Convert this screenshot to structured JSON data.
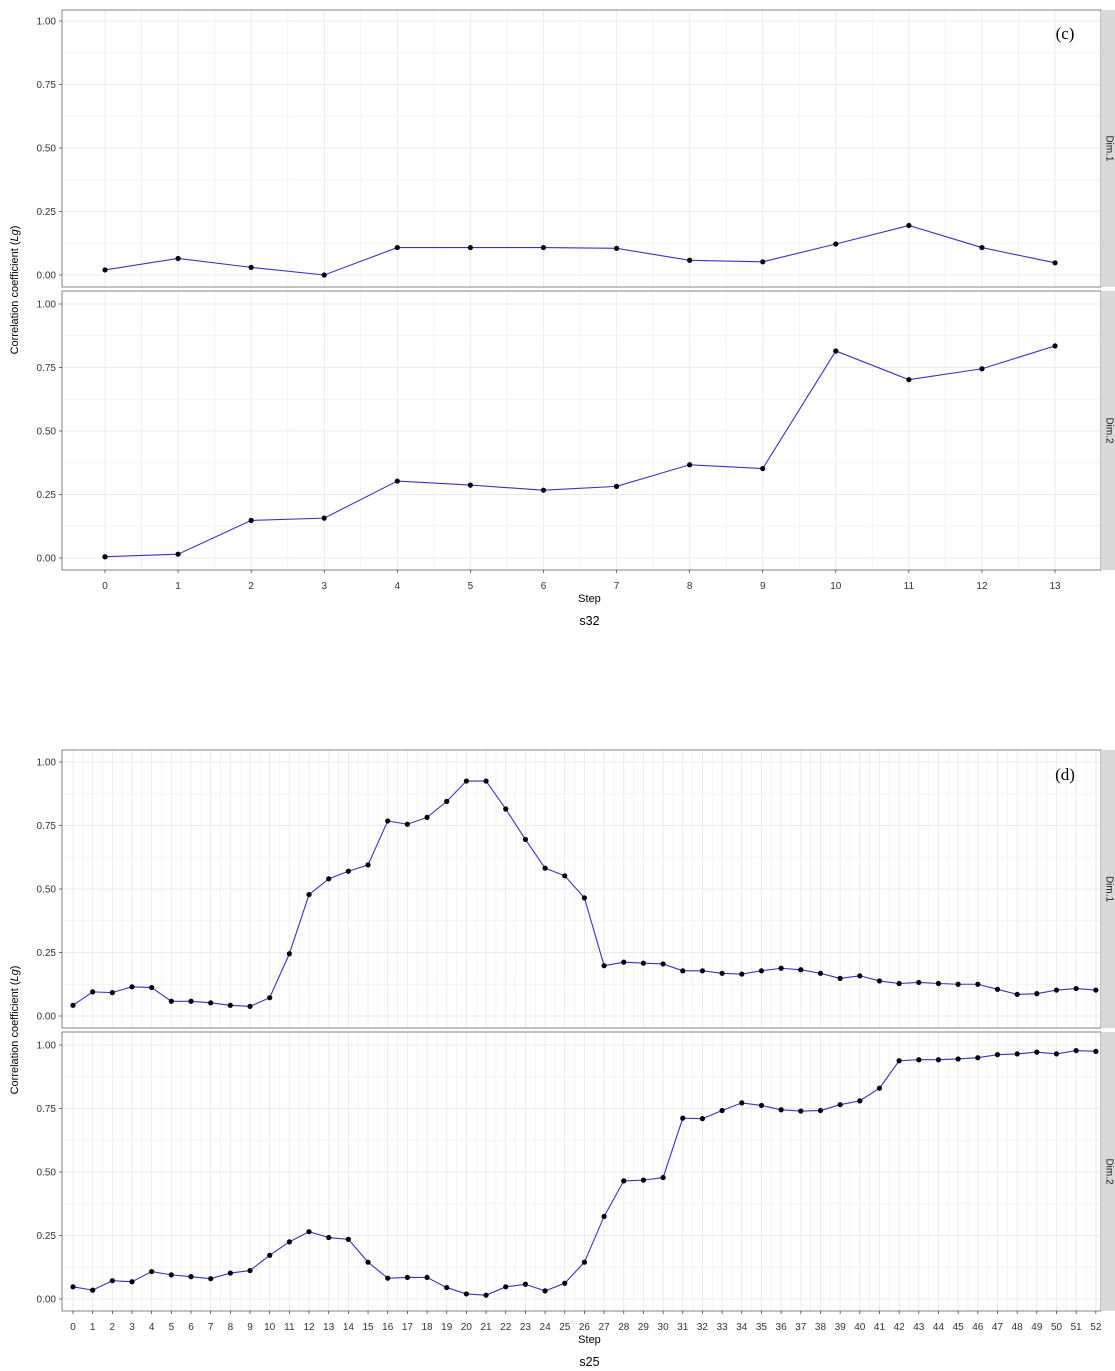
{
  "chart_data": [
    {
      "type": "line",
      "panel_label": "(c)",
      "xlabel": "Step",
      "ylabel": "Correlation coefficient (Lg)",
      "caption": "s32",
      "ylim": [
        0,
        1
      ],
      "yticks": [
        "0.00",
        "0.25",
        "0.50",
        "0.75",
        "1.00"
      ],
      "x": [
        0,
        1,
        2,
        3,
        4,
        5,
        6,
        7,
        8,
        9,
        10,
        11,
        12,
        13
      ],
      "facets": [
        {
          "name": "Dim.1",
          "values": [
            0.02,
            0.065,
            0.03,
            0.0,
            0.108,
            0.108,
            0.108,
            0.105,
            0.058,
            0.052,
            0.122,
            0.195,
            0.108,
            0.048
          ]
        },
        {
          "name": "Dim.2",
          "values": [
            0.005,
            0.015,
            0.148,
            0.157,
            0.303,
            0.287,
            0.267,
            0.282,
            0.367,
            0.352,
            0.815,
            0.702,
            0.745,
            0.835
          ]
        }
      ]
    },
    {
      "type": "line",
      "panel_label": "(d)",
      "xlabel": "Step",
      "ylabel": "Correlation coefficient (Lg)",
      "caption": "s25",
      "ylim": [
        0,
        1
      ],
      "yticks": [
        "0.00",
        "0.25",
        "0.50",
        "0.75",
        "1.00"
      ],
      "x": [
        0,
        1,
        2,
        3,
        4,
        5,
        6,
        7,
        8,
        9,
        10,
        11,
        12,
        13,
        14,
        15,
        16,
        17,
        18,
        19,
        20,
        21,
        22,
        23,
        24,
        25,
        26,
        27,
        28,
        29,
        30,
        31,
        32,
        33,
        34,
        35,
        36,
        37,
        38,
        39,
        40,
        41,
        42,
        43,
        44,
        45,
        46,
        47,
        48,
        49,
        50,
        51,
        52
      ],
      "facets": [
        {
          "name": "Dim.1",
          "values": [
            0.042,
            0.095,
            0.092,
            0.115,
            0.112,
            0.058,
            0.058,
            0.052,
            0.042,
            0.038,
            0.072,
            0.245,
            0.478,
            0.54,
            0.57,
            0.595,
            0.768,
            0.755,
            0.782,
            0.845,
            0.925,
            0.925,
            0.815,
            0.695,
            0.582,
            0.552,
            0.465,
            0.198,
            0.212,
            0.208,
            0.205,
            0.178,
            0.178,
            0.168,
            0.165,
            0.178,
            0.188,
            0.182,
            0.168,
            0.148,
            0.158,
            0.138,
            0.128,
            0.132,
            0.128,
            0.125,
            0.125,
            0.105,
            0.085,
            0.088,
            0.102,
            0.108,
            0.102
          ]
        },
        {
          "name": "Dim.2",
          "values": [
            0.048,
            0.035,
            0.072,
            0.068,
            0.108,
            0.095,
            0.088,
            0.08,
            0.102,
            0.112,
            0.172,
            0.225,
            0.265,
            0.242,
            0.235,
            0.145,
            0.082,
            0.085,
            0.085,
            0.045,
            0.02,
            0.015,
            0.048,
            0.058,
            0.032,
            0.062,
            0.145,
            0.325,
            0.465,
            0.468,
            0.478,
            0.712,
            0.71,
            0.742,
            0.772,
            0.762,
            0.745,
            0.74,
            0.742,
            0.765,
            0.78,
            0.83,
            0.938,
            0.942,
            0.942,
            0.945,
            0.95,
            0.962,
            0.965,
            0.972,
            0.965,
            0.978,
            0.975
          ]
        }
      ]
    }
  ]
}
